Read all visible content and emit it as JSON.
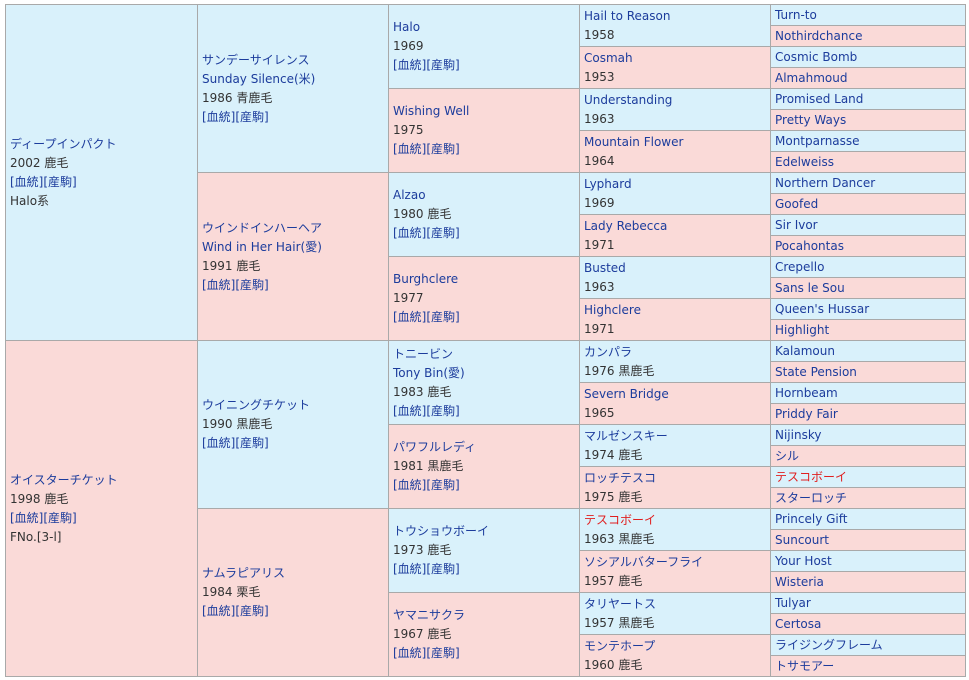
{
  "links": {
    "blood": "[血統]",
    "farm": "[産駒]"
  },
  "g1": [
    {
      "name": "ディープインパクト",
      "info": "2002 鹿毛",
      "line": "Halo系"
    },
    {
      "name": "オイスターチケット",
      "info": "1998 鹿毛",
      "line": "FNo.[3-l]"
    }
  ],
  "g2": [
    {
      "name": "サンデーサイレンス",
      "en": "Sunday Silence(米)",
      "info": "1986 青鹿毛"
    },
    {
      "name": "ウインドインハーヘア",
      "en": "Wind in Her Hair(愛)",
      "info": "1991 鹿毛"
    },
    {
      "name": "ウイニングチケット",
      "en": "",
      "info": "1990 黒鹿毛"
    },
    {
      "name": "ナムラピアリス",
      "en": "",
      "info": "1984 栗毛"
    }
  ],
  "g3": [
    {
      "name": "Halo",
      "en": "",
      "info": "1969"
    },
    {
      "name": "Wishing Well",
      "en": "",
      "info": "1975"
    },
    {
      "name": "Alzao",
      "en": "",
      "info": "1980 鹿毛"
    },
    {
      "name": "Burghclere",
      "en": "",
      "info": "1977"
    },
    {
      "name": "トニービン",
      "en": "Tony Bin(愛)",
      "info": "1983 鹿毛"
    },
    {
      "name": "パワフルレディ",
      "en": "",
      "info": "1981 黒鹿毛"
    },
    {
      "name": "トウショウボーイ",
      "en": "",
      "info": "1973 鹿毛"
    },
    {
      "name": "ヤマニサクラ",
      "en": "",
      "info": "1967 鹿毛"
    }
  ],
  "g4": [
    {
      "name": "Hail to Reason",
      "info": "1958"
    },
    {
      "name": "Cosmah",
      "info": "1953"
    },
    {
      "name": "Understanding",
      "info": "1963"
    },
    {
      "name": "Mountain Flower",
      "info": "1964"
    },
    {
      "name": "Lyphard",
      "info": "1969"
    },
    {
      "name": "Lady Rebecca",
      "info": "1971"
    },
    {
      "name": "Busted",
      "info": "1963"
    },
    {
      "name": "Highclere",
      "info": "1971"
    },
    {
      "name": "カンパラ",
      "info": "1976 黒鹿毛"
    },
    {
      "name": "Severn Bridge",
      "info": "1965"
    },
    {
      "name": "マルゼンスキー",
      "info": "1974 鹿毛"
    },
    {
      "name": "ロッチテスコ",
      "info": "1975 鹿毛"
    },
    {
      "name": "テスコボーイ",
      "info": "1963 黒鹿毛"
    },
    {
      "name": "ソシアルバターフライ",
      "info": "1957 鹿毛"
    },
    {
      "name": "タリヤートス",
      "info": "1957 黒鹿毛"
    },
    {
      "name": "モンテホープ",
      "info": "1960 鹿毛"
    }
  ],
  "g5": [
    "Turn-to",
    "Nothirdchance",
    "Cosmic Bomb",
    "Almahmoud",
    "Promised Land",
    "Pretty Ways",
    "Montparnasse",
    "Edelweiss",
    "Northern Dancer",
    "Goofed",
    "Sir Ivor",
    "Pocahontas",
    "Crepello",
    "Sans le Sou",
    "Queen's Hussar",
    "Highlight",
    "Kalamoun",
    "State Pension",
    "Hornbeam",
    "Priddy Fair",
    "Nijinsky",
    "シル",
    "テスコボーイ",
    "スターロッチ",
    "Princely Gift",
    "Suncourt",
    "Your Host",
    "Wisteria",
    "Tulyar",
    "Certosa",
    "ライジングフレーム",
    "トサモアー"
  ],
  "colors": {
    "male_bg": "#d9f1fb",
    "female_bg": "#fadad8",
    "link": "#1c3c9c",
    "highlight": "#e02020"
  }
}
